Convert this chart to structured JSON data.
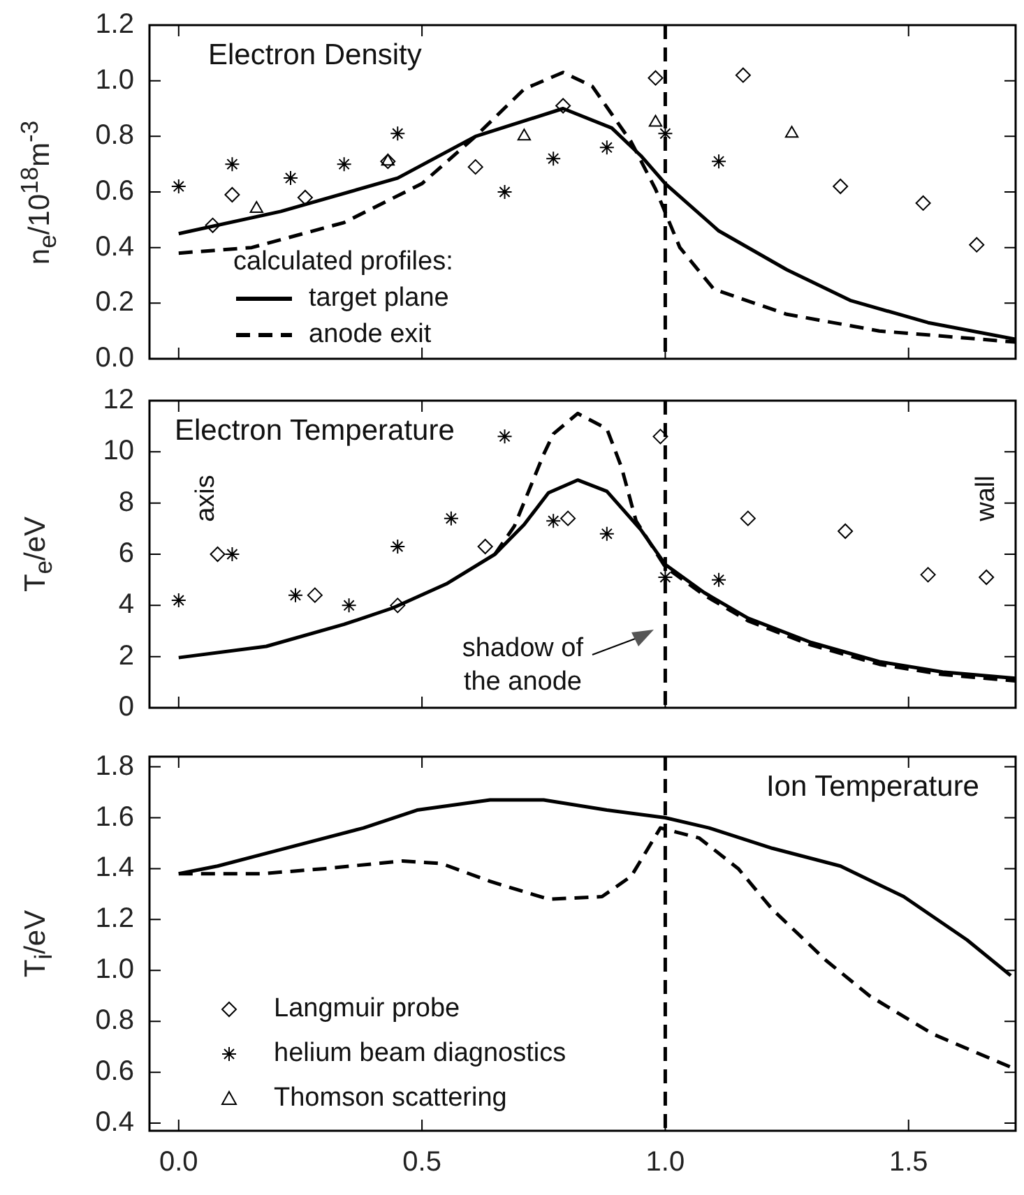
{
  "chart_data": [
    {
      "type": "line",
      "title": "Electron Density",
      "ylabel": "n$_{e}$/10$^{18}$m$^{-3}$",
      "legend": "bottom left",
      "legend_title": "calculated profiles:",
      "tick_labels": "y",
      "xlim": [
        -0.06,
        1.72
      ],
      "xticks": [
        {
          "value": 0,
          "label": null
        },
        {
          "value": 0.5,
          "label": null
        },
        {
          "value": 1,
          "label": null
        },
        {
          "value": 1.5,
          "label": null
        }
      ],
      "ylim": [
        0,
        1.2
      ],
      "yticks": [
        {
          "value": 0,
          "label": "0.0"
        },
        {
          "value": 0.2,
          "label": "0.2"
        },
        {
          "value": 0.4,
          "label": "0.4"
        },
        {
          "value": 0.6,
          "label": "0.6"
        },
        {
          "value": 0.8,
          "label": "0.8"
        },
        {
          "value": 1,
          "label": "1.0"
        },
        {
          "value": 1.2,
          "label": "1.2"
        }
      ],
      "ref_lines": [
        {
          "axis": "x",
          "value": 1,
          "color": "#000000",
          "line_style": "dashed"
        }
      ],
      "series": [
        {
          "name": "target plane",
          "type": "line",
          "color": "#000000",
          "line_style": "solid",
          "marker": "none",
          "x": [
            0,
            0.21,
            0.45,
            0.61,
            0.79,
            0.89,
            0.95,
            1.0,
            1.11,
            1.25,
            1.38,
            1.54,
            1.72
          ],
          "values": [
            0.45,
            0.53,
            0.65,
            0.8,
            0.9,
            0.83,
            0.73,
            0.63,
            0.46,
            0.32,
            0.21,
            0.13,
            0.07
          ]
        },
        {
          "name": "anode exit",
          "type": "line",
          "color": "#000000",
          "line_style": "dashed",
          "marker": "none",
          "x": [
            0,
            0.15,
            0.34,
            0.5,
            0.61,
            0.71,
            0.79,
            0.85,
            0.93,
            0.98,
            1.03,
            1.1,
            1.25,
            1.44,
            1.72
          ],
          "values": [
            0.38,
            0.4,
            0.49,
            0.63,
            0.8,
            0.97,
            1.03,
            0.98,
            0.78,
            0.61,
            0.4,
            0.25,
            0.16,
            0.1,
            0.06
          ]
        },
        {
          "type": "scatter",
          "color": "#000000",
          "marker": "diamond",
          "x": [
            0.07,
            0.11,
            0.26,
            0.43,
            0.61,
            0.79,
            0.98,
            1.16,
            1.36,
            1.53,
            1.64
          ],
          "values": [
            0.48,
            0.59,
            0.58,
            0.71,
            0.69,
            0.91,
            1.01,
            1.02,
            0.62,
            0.56,
            0.41
          ]
        },
        {
          "type": "scatter",
          "color": "#000000",
          "marker": "cross",
          "x": [
            0,
            0.11,
            0.23,
            0.34,
            0.45,
            0.67,
            0.77,
            0.88,
            1.0,
            1.11
          ],
          "values": [
            0.62,
            0.7,
            0.65,
            0.7,
            0.81,
            0.6,
            0.72,
            0.76,
            0.81,
            0.71
          ]
        },
        {
          "type": "scatter",
          "color": "#000000",
          "marker": "triangle",
          "x": [
            0.16,
            0.43,
            0.71,
            0.98,
            1.26
          ],
          "values": [
            0.54,
            0.71,
            0.8,
            0.85,
            0.81
          ]
        }
      ]
    },
    {
      "type": "line",
      "title": "Electron Temperature",
      "ylabel": "T$_{e}$/eV",
      "tick_labels": "y",
      "xlim": [
        -0.06,
        1.72
      ],
      "xticks": [
        {
          "value": 0,
          "label": null
        },
        {
          "value": 0.5,
          "label": null
        },
        {
          "value": 1,
          "label": null
        },
        {
          "value": 1.5,
          "label": null
        }
      ],
      "ylim": [
        0,
        12
      ],
      "yticks": [
        0,
        2,
        4,
        6,
        8,
        10,
        12
      ],
      "ref_lines": [
        {
          "axis": "x",
          "value": 1,
          "label": "shadow of the anode",
          "color": "#000000",
          "line_style": "dashed"
        }
      ],
      "annotations": [
        "axis",
        "wall"
      ],
      "series": [
        {
          "type": "line",
          "color": "#000000",
          "line_style": "solid",
          "marker": "none",
          "x": [
            0,
            0.18,
            0.34,
            0.44,
            0.55,
            0.65,
            0.71,
            0.76,
            0.82,
            0.88,
            0.95,
            1.0,
            1.08,
            1.17,
            1.3,
            1.44,
            1.57,
            1.72
          ],
          "values": [
            1.96,
            2.4,
            3.26,
            3.9,
            4.84,
            6.0,
            7.16,
            8.4,
            8.9,
            8.46,
            6.95,
            5.6,
            4.5,
            3.5,
            2.55,
            1.8,
            1.4,
            1.15
          ]
        },
        {
          "type": "line",
          "color": "#000000",
          "line_style": "dashed",
          "marker": "none",
          "x": [
            0.65,
            0.69,
            0.75,
            0.77,
            0.82,
            0.88,
            0.91,
            0.94,
            1.0,
            1.08,
            1.17,
            1.3,
            1.44,
            1.57,
            1.72
          ],
          "values": [
            6.0,
            7.1,
            9.9,
            10.7,
            11.5,
            10.9,
            9.4,
            7.3,
            5.5,
            4.4,
            3.4,
            2.45,
            1.7,
            1.3,
            1.05
          ]
        },
        {
          "type": "scatter",
          "color": "#000000",
          "marker": "diamond",
          "x": [
            0.08,
            0.28,
            0.45,
            0.63,
            0.8,
            0.99,
            1.17,
            1.37,
            1.54,
            1.66
          ],
          "values": [
            6.0,
            4.4,
            4.0,
            6.3,
            7.4,
            10.6,
            7.4,
            6.9,
            5.2,
            5.1
          ]
        },
        {
          "type": "scatter",
          "color": "#000000",
          "marker": "cross",
          "x": [
            0,
            0.11,
            0.24,
            0.35,
            0.45,
            0.56,
            0.67,
            0.77,
            0.88,
            1.0,
            1.11
          ],
          "values": [
            4.2,
            6.0,
            4.4,
            4.0,
            6.3,
            7.4,
            10.6,
            7.3,
            6.8,
            5.1,
            5.0
          ]
        }
      ]
    },
    {
      "type": "line",
      "title": "Ion Temperature",
      "ylabel": "T$_{i}$/eV",
      "legend": "bottom left",
      "xlim": [
        -0.06,
        1.72
      ],
      "xticks": [
        {
          "value": 0,
          "label": "0.0"
        },
        {
          "value": 0.5,
          "label": "0.5"
        },
        {
          "value": 1,
          "label": "1.0"
        },
        {
          "value": 1.5,
          "label": "1.5"
        }
      ],
      "ylim": [
        0.37,
        1.84
      ],
      "yticks": [
        {
          "value": 0.4,
          "label": "0.4"
        },
        {
          "value": 0.6,
          "label": "0.6"
        },
        {
          "value": 0.8,
          "label": "0.8"
        },
        {
          "value": 1,
          "label": "1.0"
        },
        {
          "value": 1.2,
          "label": "1.2"
        },
        {
          "value": 1.4,
          "label": "1.4"
        },
        {
          "value": 1.6,
          "label": "1.6"
        },
        {
          "value": 1.8,
          "label": "1.8"
        }
      ],
      "ref_lines": [
        {
          "axis": "x",
          "value": 1,
          "color": "#000000",
          "line_style": "dashed"
        }
      ],
      "series": [
        {
          "type": "line",
          "color": "#000000",
          "line_style": "solid",
          "marker": "none",
          "x": [
            0,
            0.08,
            0.2,
            0.38,
            0.49,
            0.64,
            0.75,
            0.88,
            1.0,
            1.09,
            1.22,
            1.36,
            1.49,
            1.62,
            1.71
          ],
          "values": [
            1.38,
            1.41,
            1.47,
            1.56,
            1.63,
            1.67,
            1.67,
            1.63,
            1.6,
            1.56,
            1.48,
            1.41,
            1.29,
            1.12,
            0.98
          ]
        },
        {
          "type": "line",
          "color": "#000000",
          "line_style": "dashed",
          "marker": "none",
          "x": [
            0,
            0.17,
            0.3,
            0.46,
            0.54,
            0.64,
            0.76,
            0.87,
            0.93,
            0.99,
            1.07,
            1.15,
            1.22,
            1.33,
            1.42,
            1.55,
            1.71
          ],
          "values": [
            1.38,
            1.38,
            1.4,
            1.43,
            1.42,
            1.35,
            1.28,
            1.29,
            1.37,
            1.56,
            1.52,
            1.4,
            1.24,
            1.04,
            0.9,
            0.75,
            0.62
          ]
        },
        {
          "name": "Langmuir probe",
          "type": "scatter",
          "color": "#000000",
          "marker": "diamond"
        },
        {
          "name": "helium beam diagnostics",
          "type": "scatter",
          "color": "#000000",
          "marker": "cross"
        },
        {
          "name": "Thomson scattering",
          "type": "scatter",
          "color": "#000000",
          "marker": "triangle"
        }
      ]
    }
  ]
}
